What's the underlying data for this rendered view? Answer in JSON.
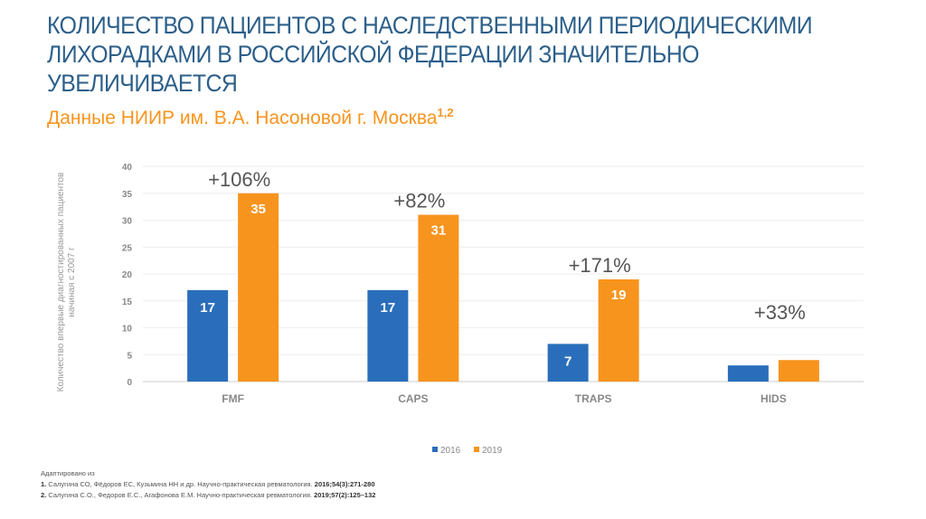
{
  "title": "КОЛИЧЕСТВО ПАЦИЕНТОВ С НАСЛЕДСТВЕННЫМИ ПЕРИОДИЧЕСКИМИ ЛИХОРАДКАМИ В РОССИЙСКОЙ ФЕДЕРАЦИИ ЗНАЧИТЕЛЬНО УВЕЛИЧИВАЕТСЯ",
  "subtitle": "Данные НИИР им. В.А. Насоновой г. Москва",
  "subtitle_sup": "1,2",
  "chart_data": {
    "type": "bar",
    "categories": [
      "FMF",
      "CAPS",
      "TRAPS",
      "HIDS"
    ],
    "series": [
      {
        "name": "2016",
        "values": [
          17,
          17,
          7,
          3
        ],
        "color": "#2a6ebb",
        "labels": [
          "17",
          "17",
          "7",
          ""
        ]
      },
      {
        "name": "2019",
        "values": [
          35,
          31,
          19,
          4
        ],
        "color": "#f7941d",
        "labels": [
          "35",
          "31",
          "19",
          ""
        ]
      }
    ],
    "annotations": [
      "+106%",
      "+82%",
      "+171%",
      "+33%"
    ],
    "ylabel_line1": "Количество впервые диагностированных пациентов",
    "ylabel_line2": "начиная с 2007 г",
    "ylim": [
      0,
      40
    ],
    "yticks": [
      0,
      5,
      10,
      15,
      20,
      25,
      30,
      35,
      40
    ],
    "grid": true,
    "legend": "bottom"
  },
  "references": {
    "intro": "Адаптировано из",
    "items": [
      {
        "num": "1.",
        "text": "Салугина СО, Фёдоров ЕС, Кузьмина НН и др. Научно-практическая ревматология.",
        "bold": "2016;54(3):271-280"
      },
      {
        "num": "2.",
        "text": "Салугина С.О., Федоров Е.С., Агафонова Е.М. Научно-практическая ревматология.",
        "bold": "2019;57(2):125–132"
      }
    ]
  }
}
